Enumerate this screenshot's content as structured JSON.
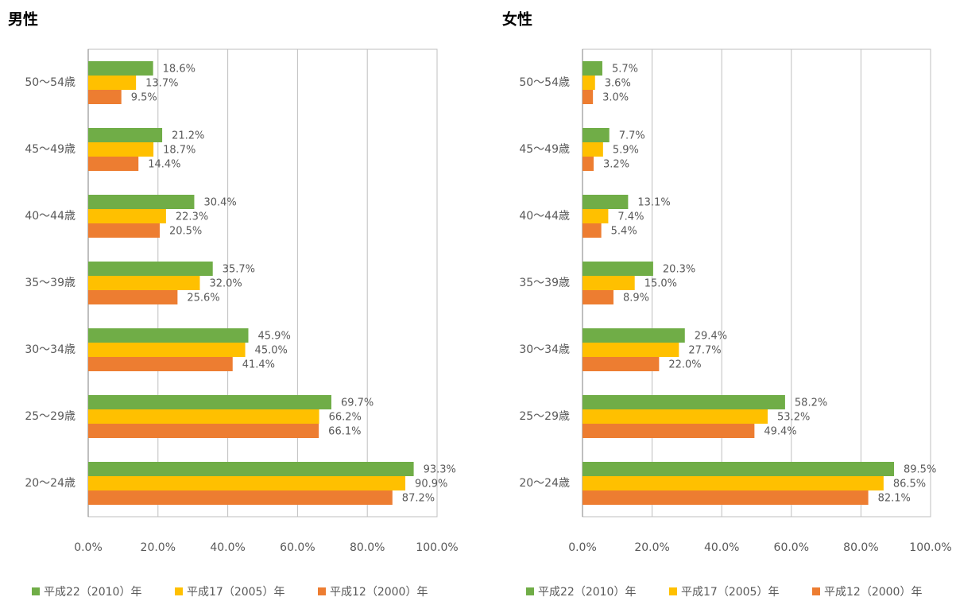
{
  "chart_data": [
    {
      "type": "bar",
      "orientation": "horizontal",
      "title": "男性",
      "categories": [
        "50〜54歳",
        "45〜49歳",
        "40〜44歳",
        "35〜39歳",
        "30〜34歳",
        "25〜29歳",
        "20〜24歳"
      ],
      "series": [
        {
          "name": "平成22（2010）年",
          "color": "#70ad47",
          "values": [
            18.6,
            21.2,
            30.4,
            35.7,
            45.9,
            69.7,
            93.3
          ],
          "value_labels": [
            "18.6%",
            "21.2%",
            "30.4%",
            "35.7%",
            "45.9%",
            "69.7%",
            "93.3%"
          ]
        },
        {
          "name": "平成17（2005）年",
          "color": "#ffc000",
          "values": [
            13.7,
            18.7,
            22.3,
            32.0,
            45.0,
            66.2,
            90.9
          ],
          "value_labels": [
            "13.7%",
            "18.7%",
            "22.3%",
            "32.0%",
            "45.0%",
            "66.2%",
            "90.9%"
          ]
        },
        {
          "name": "平成12（2000）年",
          "color": "#ed7d31",
          "values": [
            9.5,
            14.4,
            20.5,
            25.6,
            41.4,
            66.1,
            87.2
          ],
          "value_labels": [
            "9.5%",
            "14.4%",
            "20.5%",
            "25.6%",
            "41.4%",
            "66.1%",
            "87.2%"
          ]
        }
      ],
      "xlim": [
        0,
        100
      ],
      "xticks": [
        {
          "value": 0,
          "label": "0.0%"
        },
        {
          "value": 20,
          "label": "20.0%"
        },
        {
          "value": 40,
          "label": "40.0%"
        },
        {
          "value": 60,
          "label": "60.0%"
        },
        {
          "value": 80,
          "label": "80.0%"
        },
        {
          "value": 100,
          "label": "100.0%"
        }
      ],
      "grid": true,
      "legend": "bottom"
    },
    {
      "type": "bar",
      "orientation": "horizontal",
      "title": "女性",
      "categories": [
        "50〜54歳",
        "45〜49歳",
        "40〜44歳",
        "35〜39歳",
        "30〜34歳",
        "25〜29歳",
        "20〜24歳"
      ],
      "series": [
        {
          "name": "平成22（2010）年",
          "color": "#70ad47",
          "values": [
            5.7,
            7.7,
            13.1,
            20.3,
            29.4,
            58.2,
            89.5
          ],
          "value_labels": [
            "5.7%",
            "7.7%",
            "13.1%",
            "20.3%",
            "29.4%",
            "58.2%",
            "89.5%"
          ]
        },
        {
          "name": "平成17（2005）年",
          "color": "#ffc000",
          "values": [
            3.6,
            5.9,
            7.4,
            15.0,
            27.7,
            53.2,
            86.5
          ],
          "value_labels": [
            "3.6%",
            "5.9%",
            "7.4%",
            "15.0%",
            "27.7%",
            "53.2%",
            "86.5%"
          ]
        },
        {
          "name": "平成12（2000）年",
          "color": "#ed7d31",
          "values": [
            3.0,
            3.2,
            5.4,
            8.9,
            22.0,
            49.4,
            82.1
          ],
          "value_labels": [
            "3.0%",
            "3.2%",
            "5.4%",
            "8.9%",
            "22.0%",
            "49.4%",
            "82.1%"
          ]
        }
      ],
      "xlim": [
        0,
        100
      ],
      "xticks": [
        {
          "value": 0,
          "label": "0.0%"
        },
        {
          "value": 20,
          "label": "20.0%"
        },
        {
          "value": 40,
          "label": "40.0%"
        },
        {
          "value": 60,
          "label": "60.0%"
        },
        {
          "value": 80,
          "label": "80.0%"
        },
        {
          "value": 100,
          "label": "100.0%"
        }
      ],
      "grid": true,
      "legend": "bottom"
    }
  ]
}
